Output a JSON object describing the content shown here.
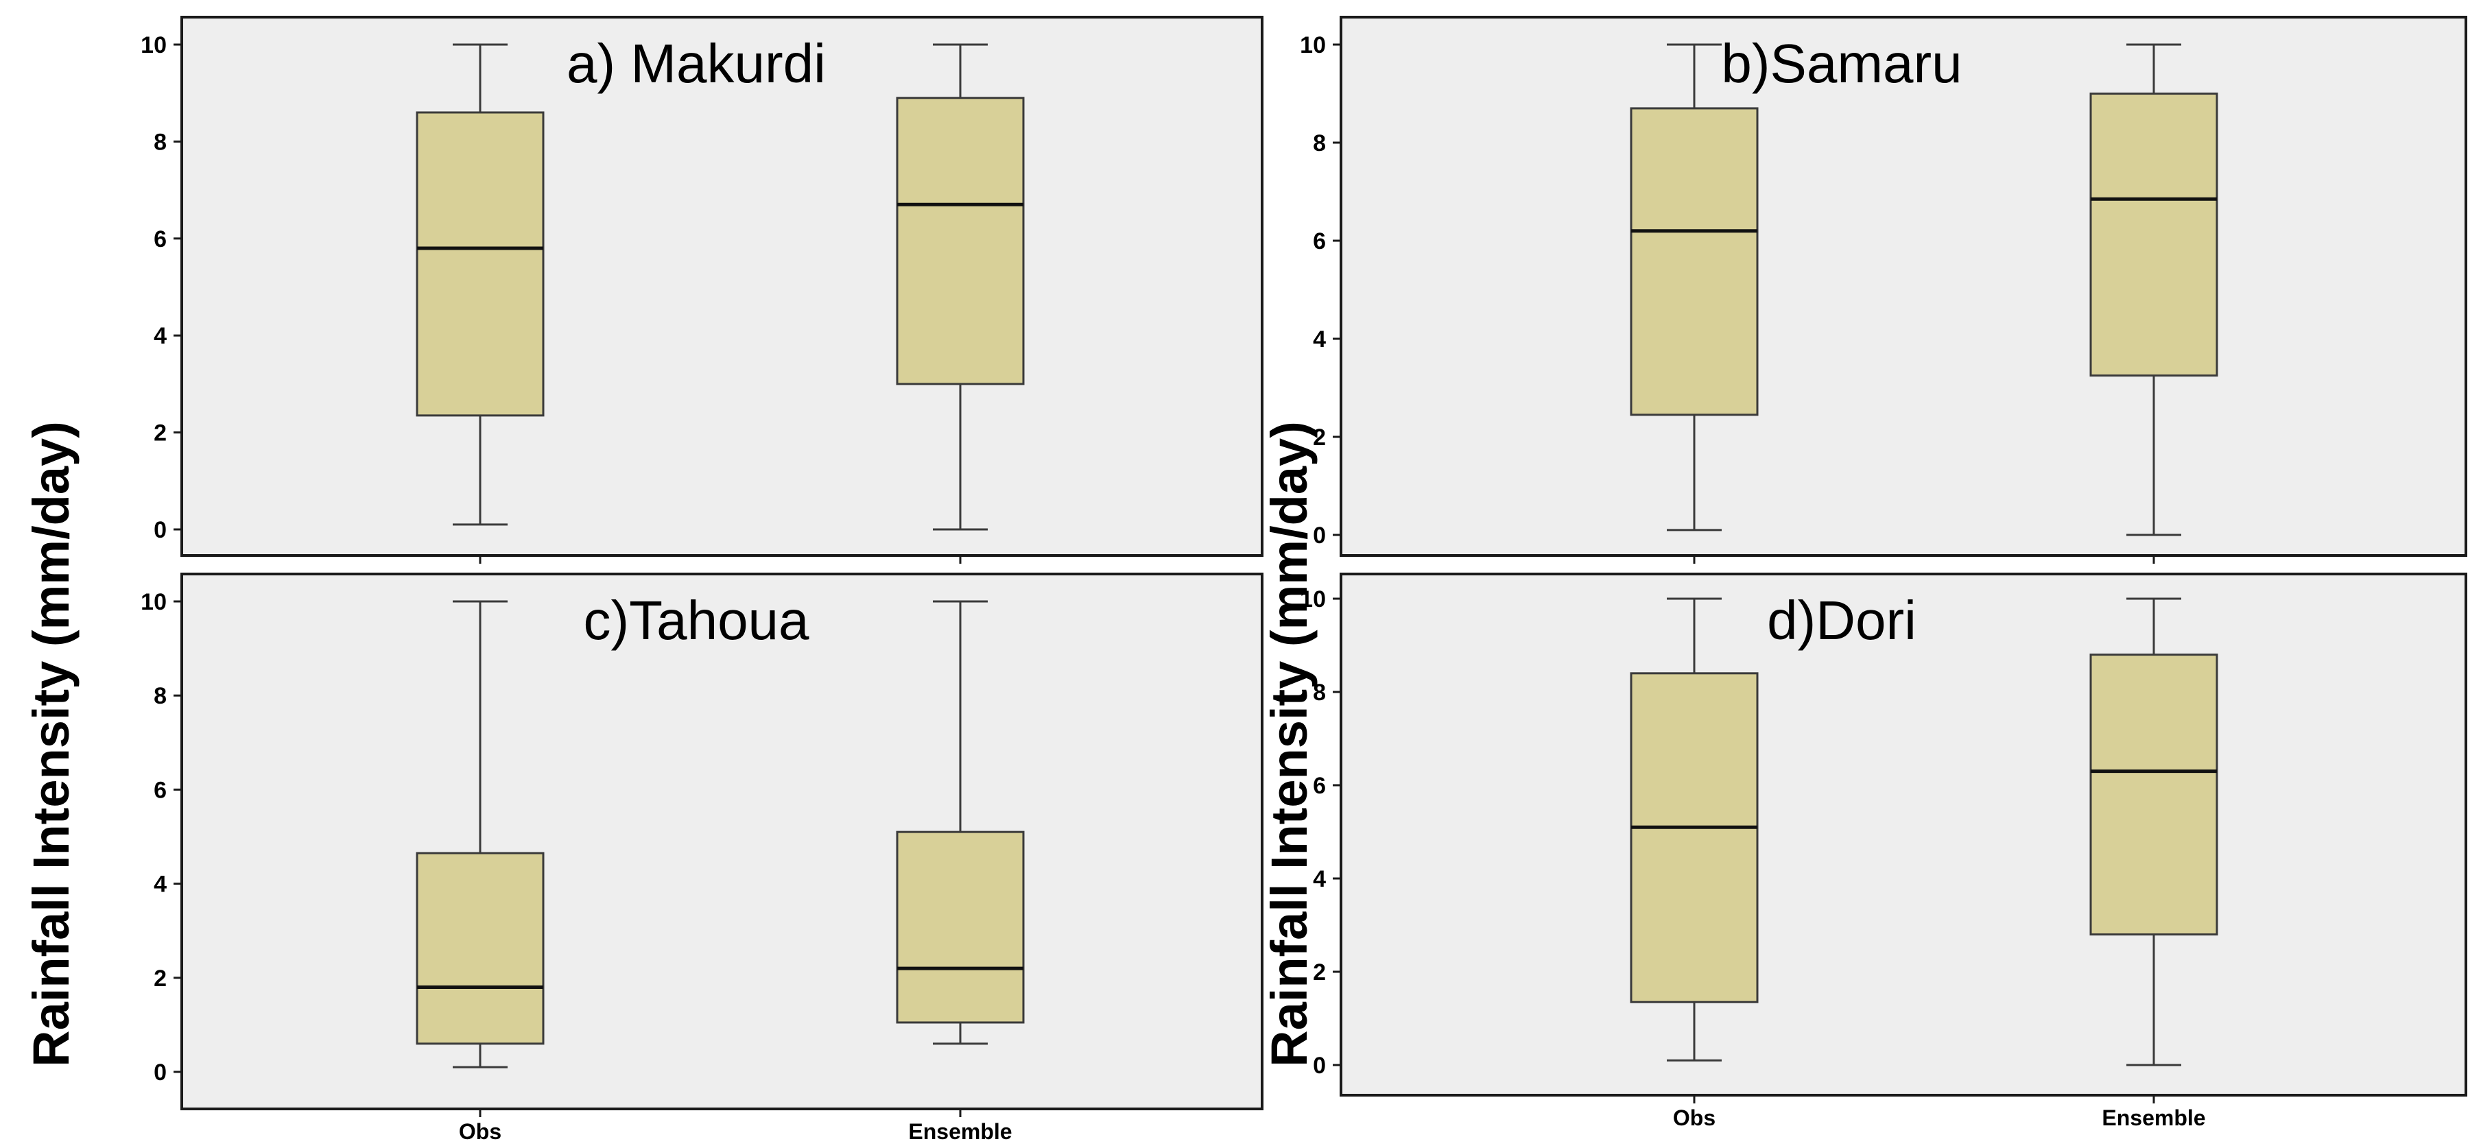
{
  "ylabel": "Rainfall Intensity (mm/day)",
  "colors": {
    "panel_background": "#eeeeee",
    "box_fill": "#d8d098",
    "box_stroke": "#3a3a3a",
    "frame": "#1a1a1a"
  },
  "chart_data": [
    {
      "type": "boxplot",
      "title": "a) Makurdi",
      "categories": [
        "Obs",
        "Ensemble"
      ],
      "ylim": [
        0,
        10
      ],
      "yticks": [
        "0",
        "2",
        "4",
        "6",
        "8",
        "10"
      ],
      "boxes": [
        {
          "name": "Obs",
          "min": 0.1,
          "q1": 2.35,
          "median": 5.8,
          "q3": 8.6,
          "max": 10.0
        },
        {
          "name": "Ensemble",
          "min": 0.0,
          "q1": 3.0,
          "median": 6.7,
          "q3": 8.9,
          "max": 10.0
        }
      ]
    },
    {
      "type": "boxplot",
      "title": "b)Samaru",
      "categories": [
        "Obs",
        "Ensemble"
      ],
      "ylim": [
        0,
        10
      ],
      "yticks": [
        "0",
        "2",
        "4",
        "6",
        "8",
        "10"
      ],
      "boxes": [
        {
          "name": "Obs",
          "min": 0.1,
          "q1": 2.45,
          "median": 6.2,
          "q3": 8.7,
          "max": 10.0
        },
        {
          "name": "Ensemble",
          "min": 0.0,
          "q1": 3.25,
          "median": 6.85,
          "q3": 9.0,
          "max": 10.0
        }
      ]
    },
    {
      "type": "boxplot",
      "title": "c)Tahoua",
      "categories": [
        "Obs",
        "Ensemble"
      ],
      "ylim": [
        0,
        10
      ],
      "yticks": [
        "0",
        "2",
        "4",
        "6",
        "8",
        "10"
      ],
      "boxes": [
        {
          "name": "Obs",
          "min": 0.1,
          "q1": 0.6,
          "median": 1.8,
          "q3": 4.65,
          "max": 10.0
        },
        {
          "name": "Ensemble",
          "min": 0.6,
          "q1": 1.05,
          "median": 2.2,
          "q3": 5.1,
          "max": 10.0
        }
      ]
    },
    {
      "type": "boxplot",
      "title": "d)Dori",
      "categories": [
        "Obs",
        "Ensemble"
      ],
      "ylim": [
        0,
        10
      ],
      "yticks": [
        "0",
        "2",
        "4",
        "6",
        "8",
        "10"
      ],
      "boxes": [
        {
          "name": "Obs",
          "min": 0.1,
          "q1": 1.35,
          "median": 5.1,
          "q3": 8.4,
          "max": 10.0
        },
        {
          "name": "Ensemble",
          "min": 0.0,
          "q1": 2.8,
          "median": 6.3,
          "q3": 8.8,
          "max": 10.0
        }
      ]
    }
  ]
}
